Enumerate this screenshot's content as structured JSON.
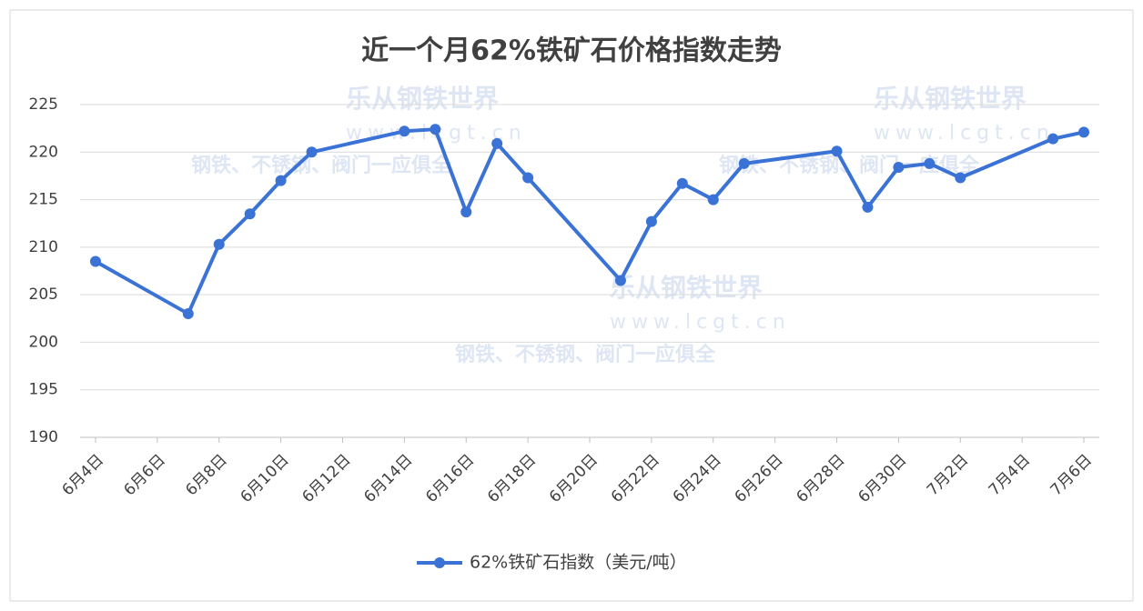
{
  "chart_data": {
    "type": "line",
    "title": "近一个月62%铁矿石价格指数走势",
    "watermark": {
      "brand": "乐从钢铁世界",
      "url": "www.lcgt.cn",
      "slogan": "钢铁、不锈钢、阀门一应俱全"
    },
    "x": [
      0,
      3,
      4,
      5,
      6,
      7,
      10,
      11,
      12,
      13,
      14,
      17,
      18,
      19,
      20,
      21,
      24,
      25,
      26,
      27,
      28,
      31,
      32
    ],
    "series": [
      {
        "name": "62%铁矿石指数（美元/吨）",
        "color": "#3a72d6",
        "values": [
          208.5,
          203,
          210.3,
          213.5,
          217,
          220,
          222.2,
          222.4,
          213.7,
          220.9,
          217.3,
          206.5,
          212.7,
          216.7,
          215,
          218.8,
          220.1,
          214.2,
          218.4,
          218.8,
          217.3,
          221.4,
          222.1
        ]
      }
    ],
    "xlim": [
      -0.5,
      32.5
    ],
    "xticks": [
      {
        "value": 0,
        "label": "6月4日"
      },
      {
        "value": 2,
        "label": "6月6日"
      },
      {
        "value": 4,
        "label": "6月8日"
      },
      {
        "value": 6,
        "label": "6月10日"
      },
      {
        "value": 8,
        "label": "6月12日"
      },
      {
        "value": 10,
        "label": "6月14日"
      },
      {
        "value": 12,
        "label": "6月16日"
      },
      {
        "value": 14,
        "label": "6月18日"
      },
      {
        "value": 16,
        "label": "6月20日"
      },
      {
        "value": 18,
        "label": "6月22日"
      },
      {
        "value": 20,
        "label": "6月24日"
      },
      {
        "value": 22,
        "label": "6月26日"
      },
      {
        "value": 24,
        "label": "6月28日"
      },
      {
        "value": 26,
        "label": "6月30日"
      },
      {
        "value": 28,
        "label": "7月2日"
      },
      {
        "value": 30,
        "label": "7月4日"
      },
      {
        "value": 32,
        "label": "7月6日"
      }
    ],
    "ylim": [
      190,
      225
    ],
    "yticks": [
      190,
      195,
      200,
      205,
      210,
      215,
      220,
      225
    ],
    "grid": true
  }
}
